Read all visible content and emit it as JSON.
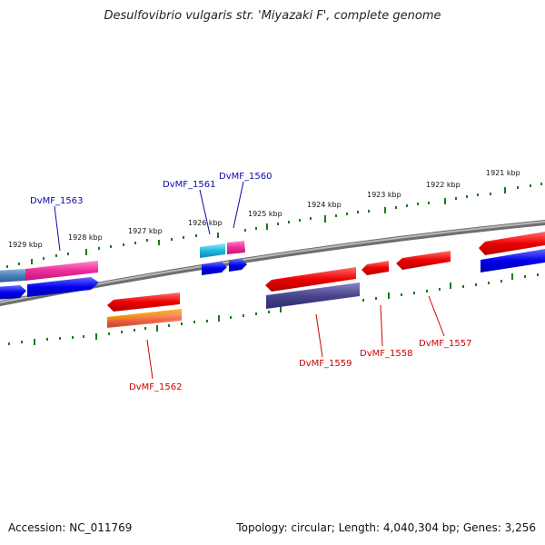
{
  "title": "Desulfovibrio vulgaris str. 'Miyazaki F', complete genome",
  "footer": {
    "accession": "Accession: NC_011769",
    "stats": "Topology: circular; Length: 4,040,304 bp; Genes: 3,256"
  },
  "colors": {
    "backbone": "#8a8a8a",
    "tick": "#1a7a1a",
    "label_forward": "#0a0aa8",
    "label_reverse": "#cc0000"
  },
  "ticks": [
    "1929 kbp",
    "1928 kbp",
    "1927 kbp",
    "1926 kbp",
    "1925 kbp",
    "1924 kbp",
    "1923 kbp",
    "1922 kbp",
    "1921 kbp"
  ],
  "genes_labeled": [
    {
      "name": "DvMF_1563",
      "strand": "forward"
    },
    {
      "name": "DvMF_1561",
      "strand": "forward"
    },
    {
      "name": "DvMF_1560",
      "strand": "forward"
    },
    {
      "name": "DvMF_1562",
      "strand": "reverse"
    },
    {
      "name": "DvMF_1559",
      "strand": "reverse"
    },
    {
      "name": "DvMF_1558",
      "strand": "reverse"
    },
    {
      "name": "DvMF_1557",
      "strand": "reverse"
    }
  ]
}
